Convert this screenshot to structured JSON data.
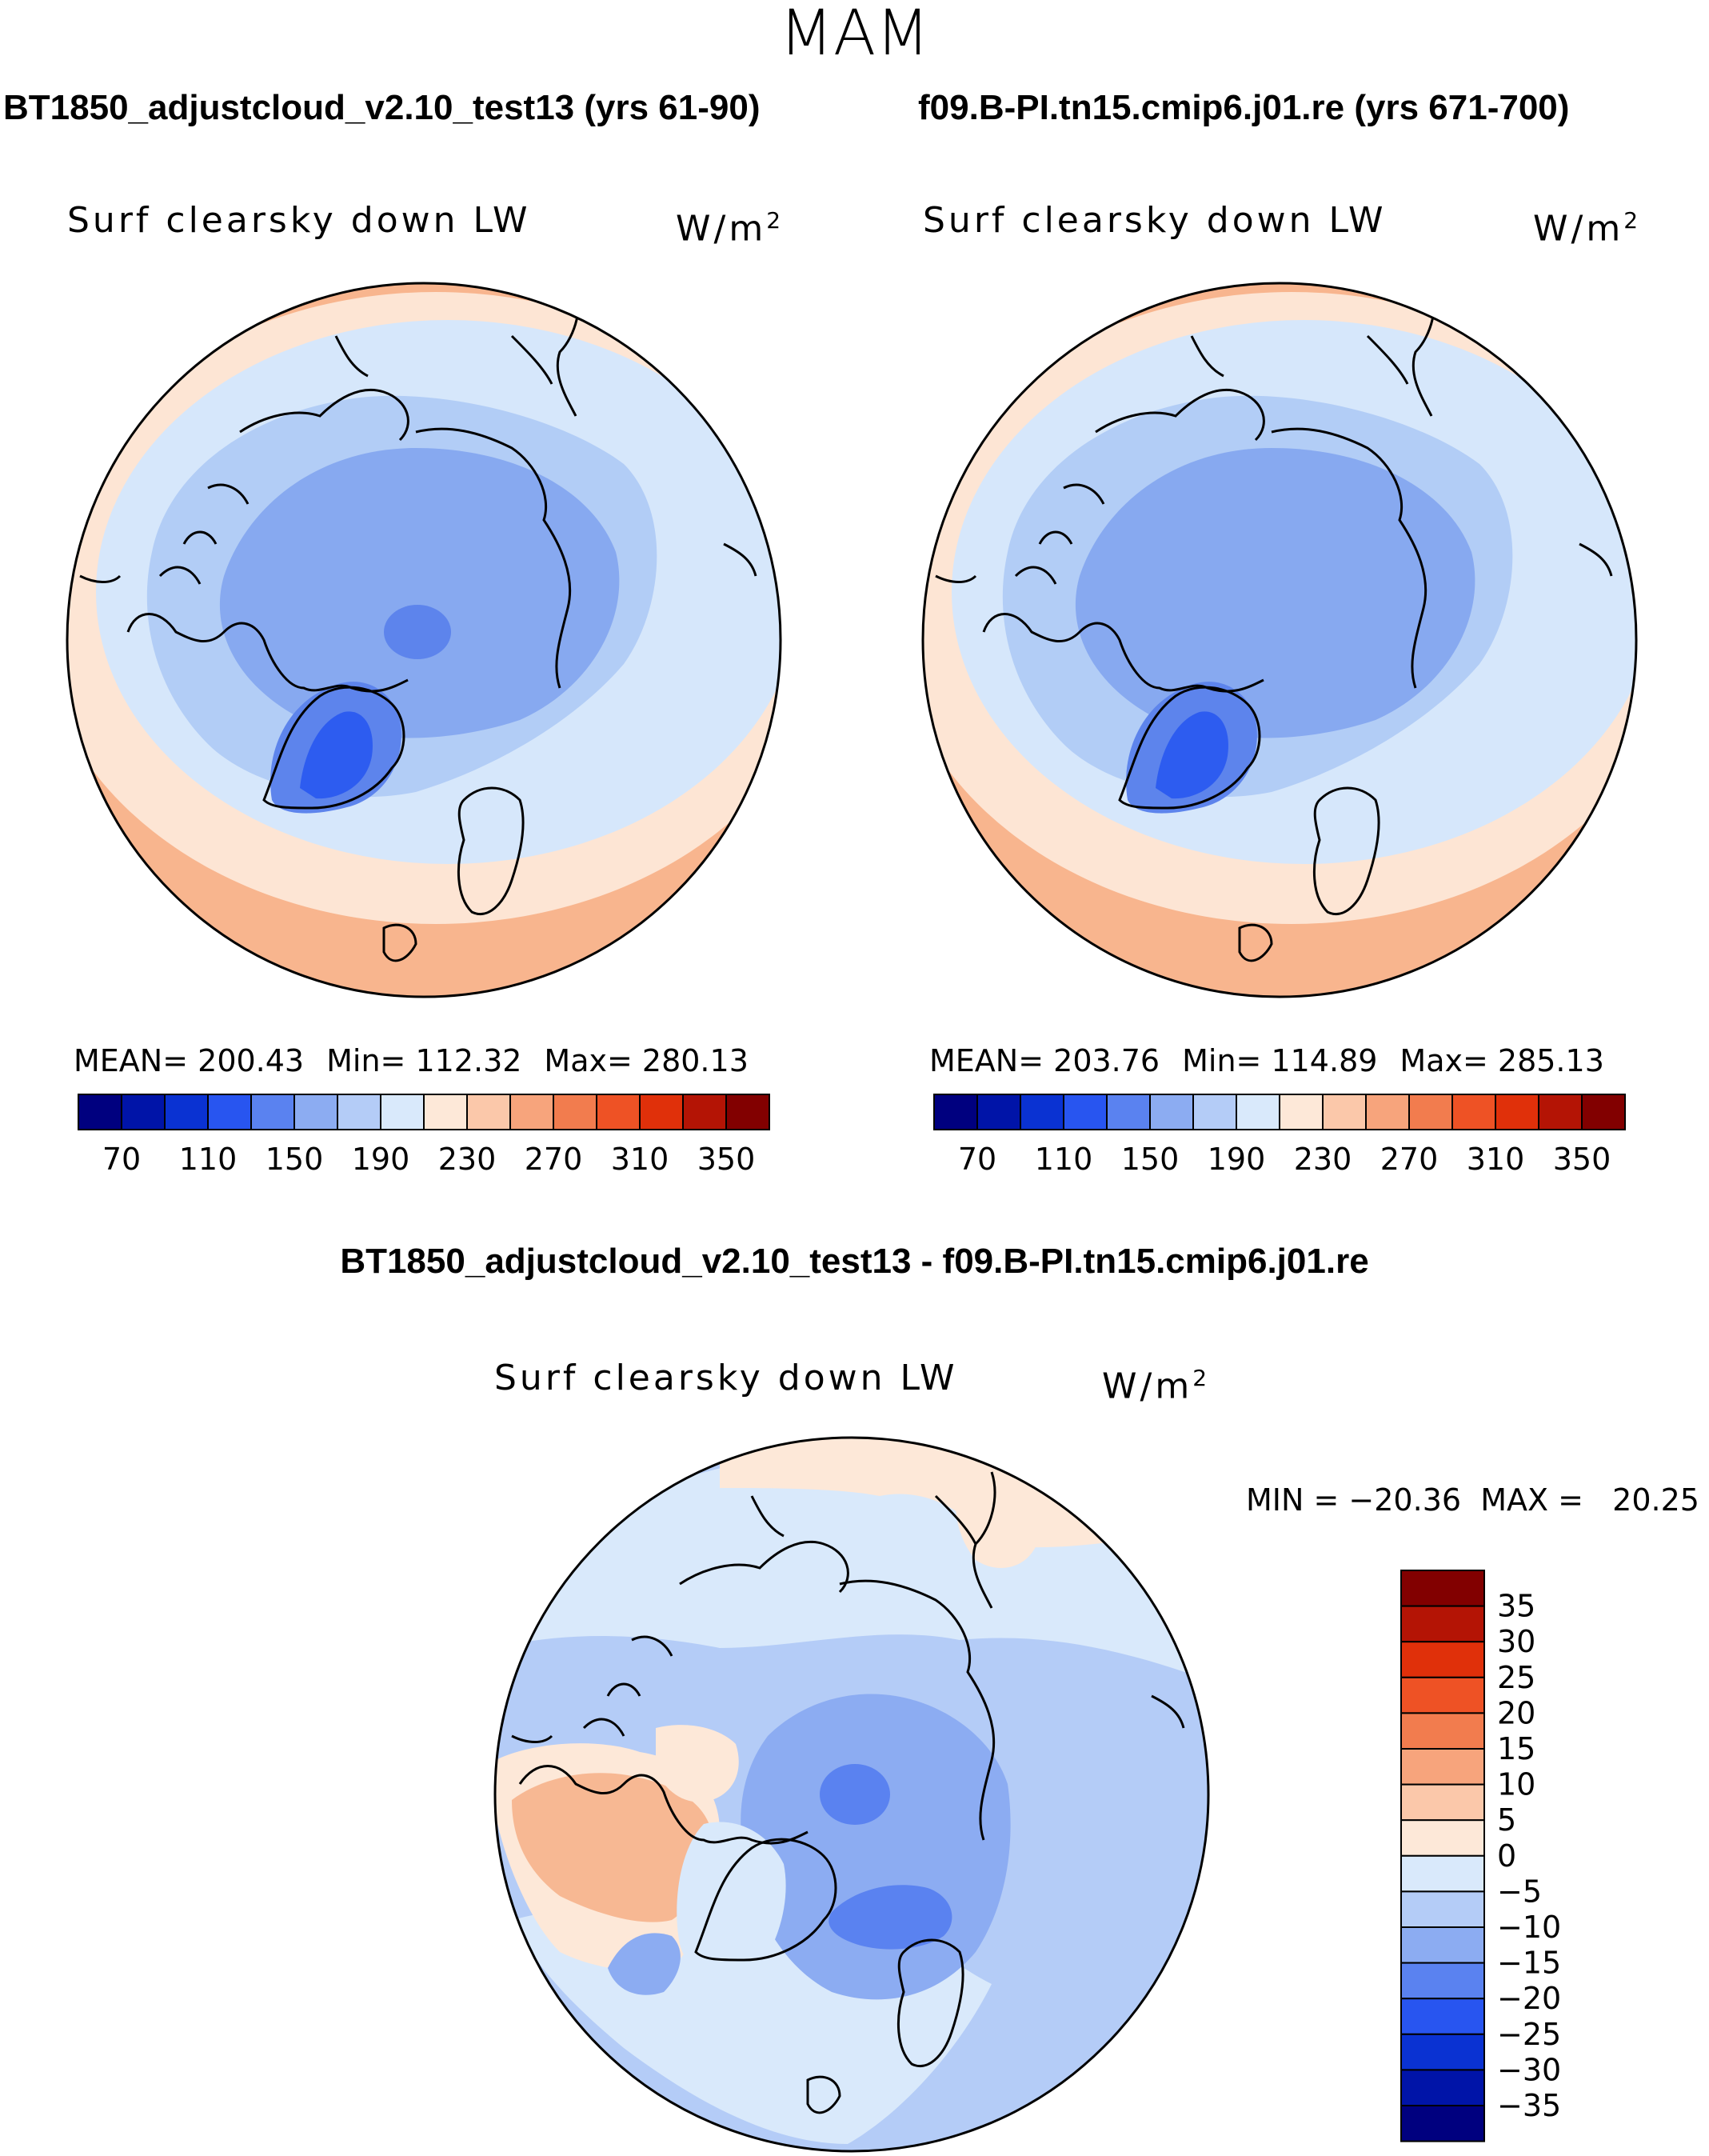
{
  "page": {
    "title": "MAM"
  },
  "panels": [
    {
      "case": "BT1850_adjustcloud_v2.10_test13 (yrs 61-90)",
      "label": "Surf clearsky down LW",
      "unit": "W/m",
      "unit_exp": "2",
      "stats": {
        "mean": "MEAN= 200.43",
        "min": "Min= 112.32",
        "max": "Max= 280.13"
      }
    },
    {
      "case": "f09.B-PI.tn15.cmip6.j01.re (yrs 671-700)",
      "label": "Surf clearsky down LW",
      "unit": "W/m",
      "unit_exp": "2",
      "stats": {
        "mean": "MEAN= 203.76",
        "min": "Min= 114.89",
        "max": "Max= 285.13"
      }
    }
  ],
  "diff": {
    "title": "BT1850_adjustcloud_v2.10_test13 - f09.B-PI.tn15.cmip6.j01.re",
    "label": "Surf clearsky down LW",
    "unit": "W/m",
    "unit_exp": "2",
    "minmax": "MIN = −20.36  MAX =   20.25"
  },
  "colorbar_abs": {
    "colors": [
      "#00007f",
      "#0014a8",
      "#0a32d2",
      "#2855f0",
      "#5a82f0",
      "#8cacf2",
      "#b4ccf7",
      "#d9e9fb",
      "#fde8d8",
      "#fbc8aa",
      "#f7a47c",
      "#f27c4e",
      "#ee5225",
      "#e0300a",
      "#b41405",
      "#820000"
    ],
    "labels": [
      "70",
      "110",
      "150",
      "190",
      "230",
      "270",
      "310",
      "350"
    ]
  },
  "colorbar_diff": {
    "colors": [
      "#820000",
      "#b41405",
      "#e0300a",
      "#ee5225",
      "#f27c4e",
      "#f7a47c",
      "#fbc8aa",
      "#fde8d8",
      "#d9e9fb",
      "#b4ccf7",
      "#8cacf2",
      "#5a82f0",
      "#2855f0",
      "#0a32d2",
      "#0014a8",
      "#00007f"
    ],
    "labels": [
      "35",
      "30",
      "25",
      "20",
      "15",
      "10",
      "5",
      "0",
      "−5",
      "−10",
      "−15",
      "−20",
      "−25",
      "−30",
      "−35"
    ]
  },
  "map_layers": {
    "outer": "#f8b58e",
    "band2": "#fde5d4",
    "band3": "#d6e7fb",
    "band4": "#b2cdf6",
    "core": "#87a9f0",
    "deep": "#5d84ec",
    "deepest": "#2d5cf0",
    "diff_bg": "#b4ccf7",
    "diff_light": "#d9e9fb",
    "diff_warm": "#fde8d8",
    "diff_warm2": "#f7b893",
    "diff_cool": "#8cacf2",
    "diff_cool2": "#5a82f0"
  }
}
